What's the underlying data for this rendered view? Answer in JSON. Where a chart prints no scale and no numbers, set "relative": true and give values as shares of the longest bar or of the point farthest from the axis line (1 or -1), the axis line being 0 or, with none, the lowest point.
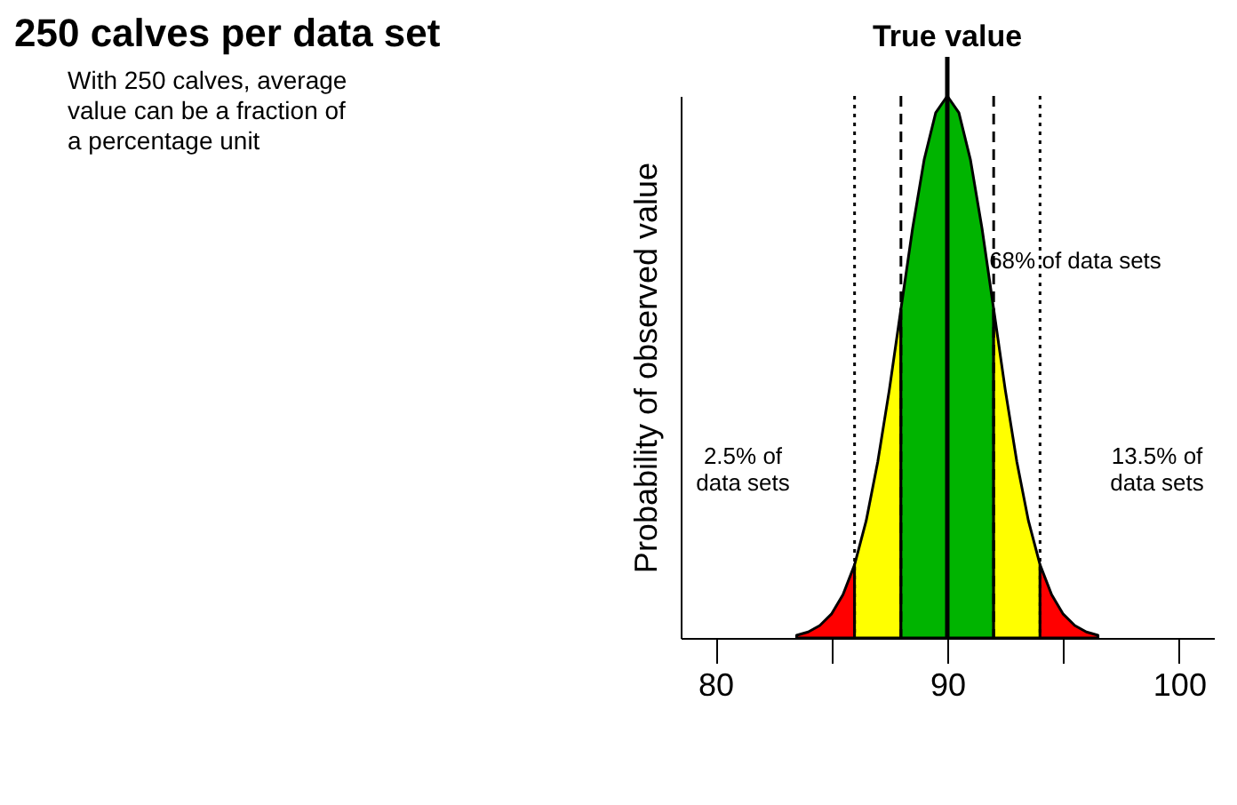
{
  "chart_data": {
    "type": "area",
    "title": "250 calves per data set",
    "subtitle": "With 250 calves, average value can be a fraction of a percentage unit",
    "ylabel": "Probability of observed value",
    "relative": true,
    "xlim": [
      78.5,
      101.5
    ],
    "xticks": [
      80,
      {
        "value": 85,
        "label": null
      },
      90,
      {
        "value": 95,
        "label": null
      },
      100
    ],
    "series": [
      {
        "color": "#ff0000",
        "x": [
          83.5,
          84,
          84.5,
          85,
          85.5,
          86
        ],
        "values": [
          0.005,
          0.011,
          0.023,
          0.044,
          0.08,
          0.135
        ]
      },
      {
        "color": "#ffff00",
        "x": [
          86,
          86.5,
          87,
          87.5,
          88
        ],
        "values": [
          0.135,
          0.216,
          0.325,
          0.458,
          0.607
        ]
      },
      {
        "color": "#00b400",
        "x": [
          88,
          88.5,
          89,
          89.5,
          90,
          90.5,
          91,
          91.5,
          92
        ],
        "values": [
          0.607,
          0.755,
          0.882,
          0.969,
          1,
          0.969,
          0.882,
          0.755,
          0.607
        ]
      },
      {
        "color": "#ffff00",
        "x": [
          92,
          92.5,
          93,
          93.5,
          94
        ],
        "values": [
          0.607,
          0.458,
          0.325,
          0.216,
          0.135
        ]
      },
      {
        "color": "#ff0000",
        "x": [
          94,
          94.5,
          95,
          95.5,
          96,
          96.5
        ],
        "values": [
          0.135,
          0.08,
          0.044,
          0.023,
          0.011,
          0.005
        ]
      }
    ],
    "ref_lines": [
      {
        "axis": "x",
        "value": 86,
        "line_style": "dotted"
      },
      {
        "axis": "x",
        "value": 88,
        "line_style": "dashed"
      },
      {
        "axis": "x",
        "value": 90,
        "label": "True value",
        "line_style": "solid"
      },
      {
        "axis": "x",
        "value": 92,
        "line_style": "dashed"
      },
      {
        "axis": "x",
        "value": 94,
        "line_style": "dotted"
      }
    ],
    "annotations": [
      "68% of data sets",
      "2.5% of\ndata sets",
      "13.5% of\ndata sets"
    ],
    "grid": false
  }
}
